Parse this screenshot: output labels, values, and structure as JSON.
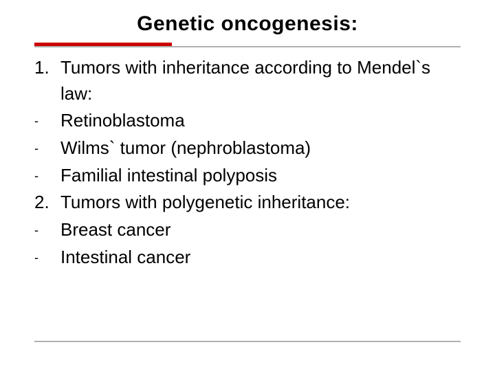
{
  "title": "Genetic oncogenesis:",
  "colors": {
    "accent_red": "#cc0000",
    "gray_line": "#b0b0b0",
    "text": "#000000",
    "background": "#ffffff"
  },
  "typography": {
    "title_fontsize": 30,
    "body_fontsize": 26,
    "font_family": "Verdana"
  },
  "items": [
    {
      "marker": "1.",
      "type": "numbered",
      "text": "Tumors with inheritance according to Mendel`s law:"
    },
    {
      "marker": "-",
      "type": "dash",
      "text": "Retinoblastoma"
    },
    {
      "marker": "-",
      "type": "dash",
      "text": "Wilms` tumor (nephroblastoma)"
    },
    {
      "marker": "-",
      "type": "dash",
      "text": "Familial intestinal polyposis"
    },
    {
      "marker": "2.",
      "type": "numbered",
      "text": "Tumors with polygenetic inheritance:"
    },
    {
      "marker": "-",
      "type": "dash",
      "text": "Breast cancer"
    },
    {
      "marker": "-",
      "type": "dash",
      "text": "Intestinal cancer"
    }
  ]
}
